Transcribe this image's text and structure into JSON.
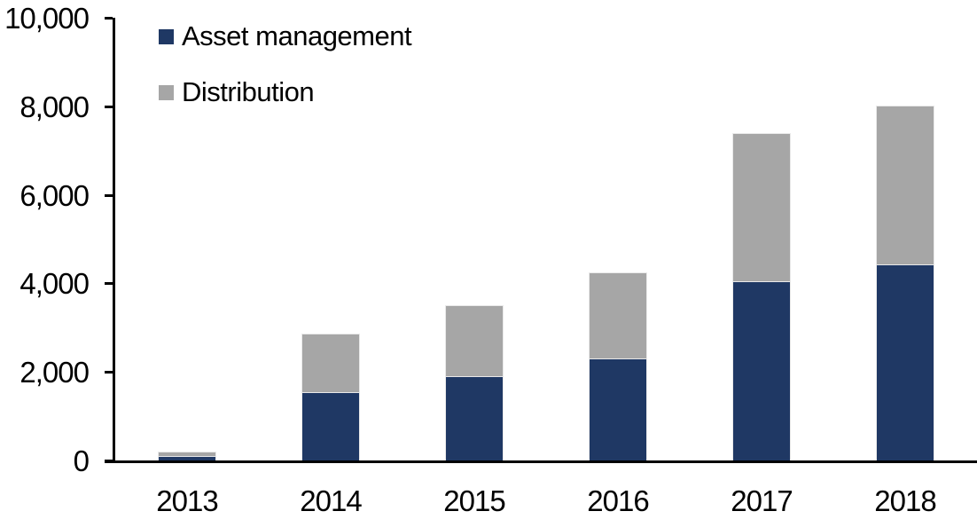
{
  "chart_data": {
    "type": "bar",
    "stacked": true,
    "title": "",
    "xlabel": "",
    "ylabel": "",
    "categories": [
      "2013",
      "2014",
      "2015",
      "2016",
      "2017",
      "2018"
    ],
    "series": [
      {
        "name": "Asset management",
        "color": "#1f3864",
        "values": [
          100,
          1550,
          1900,
          2300,
          4050,
          4420
        ]
      },
      {
        "name": "Distribution",
        "color": "#a6a6a6",
        "values": [
          100,
          1320,
          1600,
          1950,
          3350,
          3580
        ]
      }
    ],
    "totals": [
      200,
      2870,
      3500,
      4250,
      7400,
      8000
    ],
    "ylim": [
      0,
      10000
    ],
    "yticks": [
      0,
      2000,
      4000,
      6000,
      8000,
      10000
    ],
    "ytick_labels": [
      "0",
      "2,000",
      "4,000",
      "6,000",
      "8,000",
      "10,000"
    ],
    "grid": false,
    "legend_position": "top-left",
    "axis_color": "#000000",
    "background_color": "#ffffff"
  }
}
